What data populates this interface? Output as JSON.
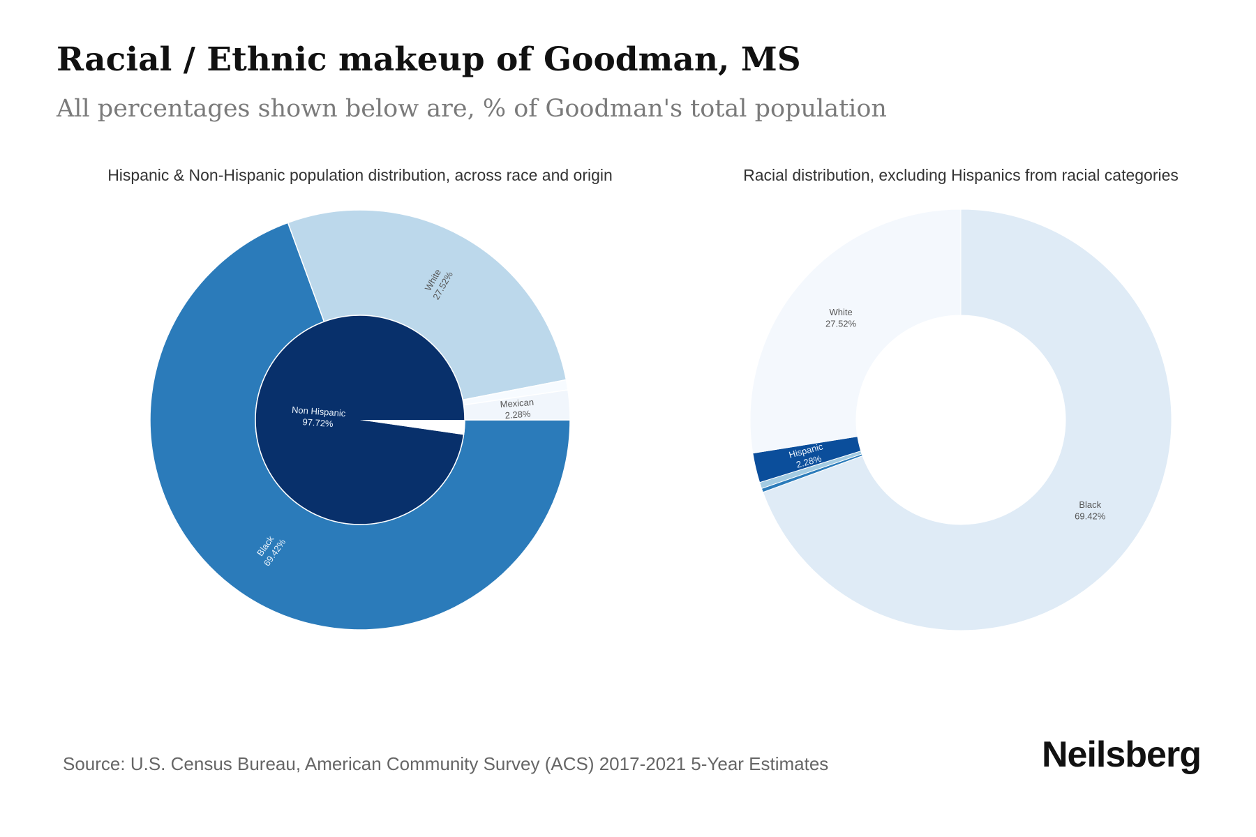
{
  "header": {
    "title": "Racial / Ethnic makeup of Goodman, MS",
    "subtitle": "All percentages shown below are, % of Goodman's total population"
  },
  "footer": {
    "source": "Source: U.S. Census Bureau, American Community Survey (ACS) 2017-2021 5-Year Estimates",
    "brand": "Neilsberg"
  },
  "colors": {
    "navy": "#08306b",
    "blue": "#2b7bba",
    "light_blue": "#bcd8eb",
    "pale": "#f1f6fc",
    "pale_blue": "#dfebf6",
    "very_pale": "#f4f8fd",
    "hispanic_blue": "#0b4e9b",
    "mid_light_blue": "#a3cbe2"
  },
  "chart_data": [
    {
      "type": "pie",
      "title": "Hispanic & Non-Hispanic population distribution, across race and origin",
      "inner": [
        {
          "label": "Non Hispanic",
          "pct_label": "97.72%",
          "value": 97.72,
          "color": "#08306b",
          "show_label": true
        },
        {
          "label": "Hispanic",
          "pct_label": "2.28%",
          "value": 2.28,
          "color": "#ffffff",
          "show_label": false
        }
      ],
      "outer": [
        {
          "label": "Black",
          "pct_label": "69.42%",
          "value": 69.42,
          "color": "#2b7bba",
          "show_label": true
        },
        {
          "label": "White",
          "pct_label": "27.52%",
          "value": 27.52,
          "color": "#bcd8eb",
          "show_label": true
        },
        {
          "label": "Other",
          "value": 0.78,
          "color": "#f7fbff",
          "show_label": false
        },
        {
          "label": "Mexican",
          "pct_label": "2.28%",
          "value": 2.28,
          "color": "#f1f6fc",
          "show_label": true
        }
      ]
    },
    {
      "type": "pie",
      "title": "Racial distribution, excluding Hispanics from racial categories",
      "segments": [
        {
          "label": "Black",
          "pct_label": "69.42%",
          "value": 69.42,
          "color": "#dfebf6",
          "show_label": true
        },
        {
          "label": "Other",
          "value": 0.3,
          "color": "#2b7bba",
          "show_label": false
        },
        {
          "label": "Other",
          "value": 0.48,
          "color": "#a3cbe2",
          "show_label": false
        },
        {
          "label": "Hispanic",
          "pct_label": "2.28%",
          "value": 2.28,
          "color": "#0b4e9b",
          "show_label": true
        },
        {
          "label": "White",
          "pct_label": "27.52%",
          "value": 27.52,
          "color": "#f4f8fd",
          "show_label": true
        }
      ]
    }
  ]
}
